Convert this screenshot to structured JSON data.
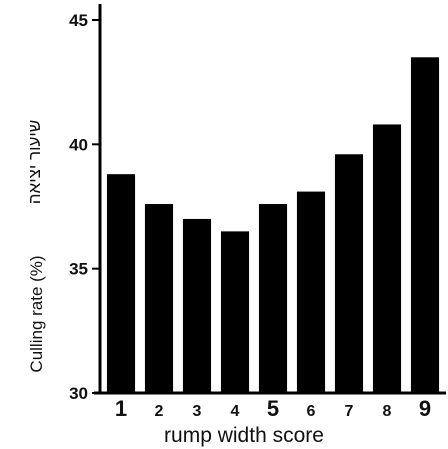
{
  "chart_data": {
    "type": "bar",
    "categories": [
      "1",
      "2",
      "3",
      "4",
      "5",
      "6",
      "7",
      "8",
      "9"
    ],
    "values": [
      38.8,
      37.6,
      37.0,
      36.5,
      37.6,
      38.1,
      39.6,
      40.8,
      43.5
    ],
    "ylim": [
      30,
      45
    ],
    "yticks": [
      "30",
      "35",
      "40",
      "45"
    ],
    "xlabel": "rump width score",
    "ylabel": "Culling rate (%)",
    "ylabel_secondary": "שיעור יציאה",
    "bar_color": "#000000",
    "grid": false,
    "legend": "none"
  }
}
